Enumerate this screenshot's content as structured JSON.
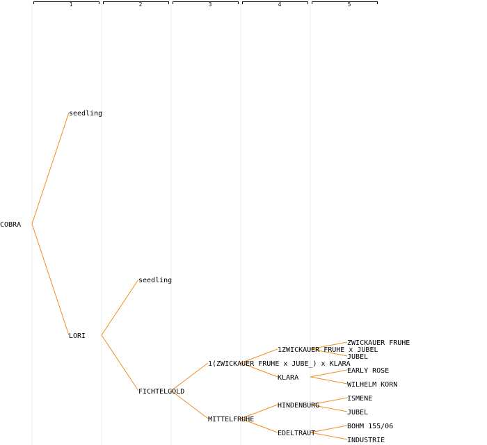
{
  "diagram": {
    "generations": [
      "1",
      "2",
      "3",
      "4",
      "5"
    ],
    "nodes": {
      "root": "COBRA",
      "g1_top": "seedling",
      "g1_bottom": "LORI",
      "g2_top": "seedling",
      "g2_bottom": "FICHTELGOLD",
      "g3_top": "1(ZWICKAUER FRUHE x JUBE_) x KLARA",
      "g3_bottom": "MITTELFRUHE",
      "g4_a": "1ZWICKAUER FRUHE x JUBEL",
      "g4_b": "KLARA",
      "g4_c": "HINDENBURG",
      "g4_d": "EDELTRAUT",
      "g5_a": "ZWICKAUER FRUHE",
      "g5_b": "JUBEL",
      "g5_c": "EARLY ROSE",
      "g5_d": "WILHELM KORN",
      "g5_e": "ISMENE",
      "g5_f": "JUBEL",
      "g5_g": "BOHM 155/06",
      "g5_h": "INDUSTRIE"
    },
    "colors": {
      "edge": "#f08c1e",
      "guide": "#ececec",
      "text": "#000000"
    }
  }
}
